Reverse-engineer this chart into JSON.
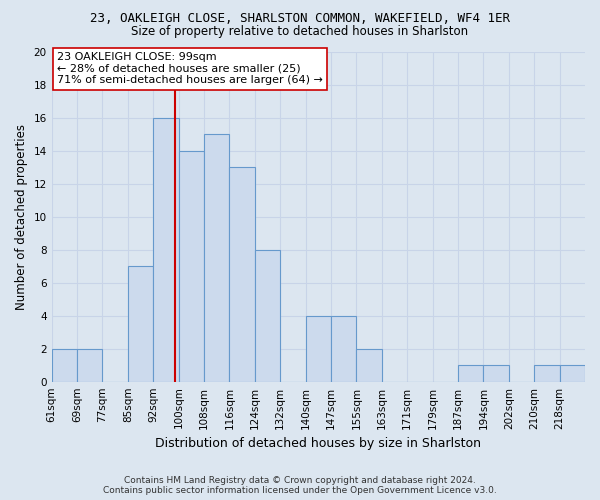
{
  "title_line1": "23, OAKLEIGH CLOSE, SHARLSTON COMMON, WAKEFIELD, WF4 1ER",
  "title_line2": "Size of property relative to detached houses in Sharlston",
  "xlabel": "Distribution of detached houses by size in Sharlston",
  "ylabel": "Number of detached properties",
  "bin_labels": [
    "61sqm",
    "69sqm",
    "77sqm",
    "85sqm",
    "92sqm",
    "100sqm",
    "108sqm",
    "116sqm",
    "124sqm",
    "132sqm",
    "140sqm",
    "147sqm",
    "155sqm",
    "163sqm",
    "171sqm",
    "179sqm",
    "187sqm",
    "194sqm",
    "202sqm",
    "210sqm",
    "218sqm"
  ],
  "bar_heights": [
    2,
    2,
    0,
    7,
    16,
    14,
    15,
    13,
    8,
    0,
    4,
    4,
    2,
    0,
    0,
    0,
    1,
    1,
    0,
    1,
    1
  ],
  "bar_color": "#ccdaed",
  "bar_edge_color": "#6699cc",
  "vline_x": 4,
  "vline_color": "#cc0000",
  "ylim": [
    0,
    20
  ],
  "yticks": [
    0,
    2,
    4,
    6,
    8,
    10,
    12,
    14,
    16,
    18,
    20
  ],
  "annotation_title": "23 OAKLEIGH CLOSE: 99sqm",
  "annotation_line1": "← 28% of detached houses are smaller (25)",
  "annotation_line2": "71% of semi-detached houses are larger (64) →",
  "annotation_box_facecolor": "#ffffff",
  "annotation_box_edgecolor": "#cc0000",
  "footer_line1": "Contains HM Land Registry data © Crown copyright and database right 2024.",
  "footer_line2": "Contains public sector information licensed under the Open Government Licence v3.0.",
  "grid_color": "#c8d4e8",
  "background_color": "#dce6f0",
  "title1_fontsize": 9.0,
  "title2_fontsize": 8.5,
  "ylabel_fontsize": 8.5,
  "xlabel_fontsize": 9.0,
  "tick_fontsize": 7.5,
  "annotation_fontsize": 8.0,
  "footer_fontsize": 6.5
}
